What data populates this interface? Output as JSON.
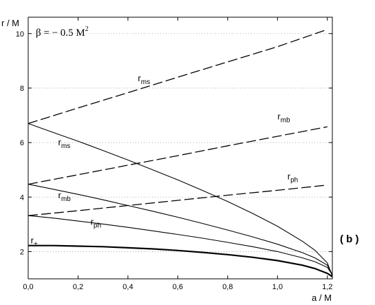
{
  "chart_data": {
    "type": "line",
    "title": "",
    "xlabel": "a / M",
    "ylabel": "r  / M",
    "annotation": "β = − 0.5 M",
    "annotation_sup": "2",
    "panel_label": "( b )",
    "xlim": [
      0.0,
      1.22
    ],
    "ylim": [
      1.0,
      10.6
    ],
    "x_ticks": [
      "0,0",
      "0,2",
      "0,4",
      "0,6",
      "0,8",
      "1,0",
      "1,2"
    ],
    "x_tick_values": [
      0.0,
      0.2,
      0.4,
      0.6,
      0.8,
      1.0,
      1.2
    ],
    "y_ticks": [
      "2",
      "4",
      "6",
      "8",
      "10"
    ],
    "y_tick_values": [
      2,
      4,
      6,
      8,
      10
    ],
    "grid": "horizontal-dotted",
    "series": [
      {
        "label_main": "r",
        "label_sub": "ms",
        "style": "dashed",
        "label_x": 0.44,
        "label_y": 8.25,
        "x": [
          0.0,
          0.2,
          0.4,
          0.6,
          0.8,
          1.0,
          1.2
        ],
        "y": [
          6.7,
          7.27,
          7.83,
          8.4,
          8.96,
          9.52,
          10.15
        ]
      },
      {
        "label_main": "r",
        "label_sub": "mb",
        "style": "dashed",
        "label_x": 1.0,
        "label_y": 6.85,
        "x": [
          0.0,
          0.2,
          0.4,
          0.6,
          0.8,
          1.0,
          1.2
        ],
        "y": [
          4.47,
          4.82,
          5.17,
          5.52,
          5.88,
          6.23,
          6.58
        ]
      },
      {
        "label_main": "r",
        "label_sub": "ph",
        "style": "dashed",
        "label_x": 1.04,
        "label_y": 4.65,
        "x": [
          0.0,
          0.2,
          0.4,
          0.6,
          0.8,
          1.0,
          1.2
        ],
        "y": [
          3.32,
          3.5,
          3.69,
          3.88,
          4.07,
          4.25,
          4.44
        ]
      },
      {
        "label_main": "r",
        "label_sub": "ms",
        "style": "solid",
        "label_x": 0.12,
        "label_y": 5.9,
        "x": [
          0.0,
          0.1,
          0.2,
          0.3,
          0.4,
          0.5,
          0.6,
          0.7,
          0.8,
          0.9,
          1.0,
          1.1,
          1.15,
          1.2,
          1.22
        ],
        "y": [
          6.7,
          6.37,
          6.05,
          5.71,
          5.36,
          5.0,
          4.63,
          4.24,
          3.84,
          3.4,
          2.93,
          2.38,
          2.05,
          1.58,
          1.1
        ]
      },
      {
        "label_main": "r",
        "label_sub": "mb",
        "style": "solid",
        "label_x": 0.12,
        "label_y": 3.95,
        "x": [
          0.0,
          0.1,
          0.2,
          0.3,
          0.4,
          0.5,
          0.6,
          0.7,
          0.8,
          0.9,
          1.0,
          1.1,
          1.15,
          1.2,
          1.22
        ],
        "y": [
          4.47,
          4.29,
          4.1,
          3.9,
          3.69,
          3.48,
          3.26,
          3.03,
          2.79,
          2.54,
          2.27,
          1.96,
          1.77,
          1.5,
          1.15
        ]
      },
      {
        "label_main": "r",
        "label_sub": "ph",
        "style": "solid",
        "label_x": 0.25,
        "label_y": 2.98,
        "x": [
          0.0,
          0.1,
          0.2,
          0.3,
          0.4,
          0.5,
          0.6,
          0.7,
          0.8,
          0.9,
          1.0,
          1.1,
          1.15,
          1.2,
          1.22
        ],
        "y": [
          3.32,
          3.23,
          3.12,
          3.01,
          2.89,
          2.76,
          2.63,
          2.49,
          2.34,
          2.18,
          2.0,
          1.77,
          1.63,
          1.42,
          1.15
        ]
      },
      {
        "label_main": "r",
        "label_sub": "+",
        "style": "solid-thick",
        "label_x": 0.01,
        "label_y": 2.3,
        "x": [
          0.0,
          0.1,
          0.2,
          0.3,
          0.4,
          0.5,
          0.6,
          0.7,
          0.8,
          0.9,
          1.0,
          1.1,
          1.15,
          1.2,
          1.22
        ],
        "y": [
          2.22,
          2.22,
          2.2,
          2.18,
          2.14,
          2.1,
          2.04,
          1.97,
          1.89,
          1.79,
          1.67,
          1.5,
          1.38,
          1.2,
          1.08
        ]
      }
    ]
  }
}
